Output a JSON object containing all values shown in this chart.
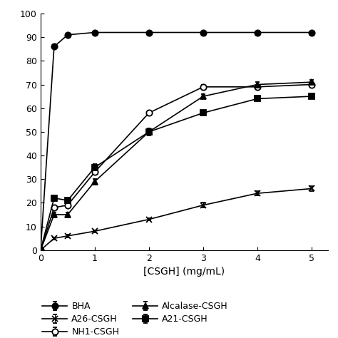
{
  "title": "",
  "xlabel": "[CSGH] (mg/mL)",
  "xlim": [
    0,
    5.3
  ],
  "ylim": [
    0,
    100
  ],
  "xticks": [
    0,
    1,
    2,
    3,
    4,
    5
  ],
  "yticks": [
    0,
    10,
    20,
    30,
    40,
    50,
    60,
    70,
    80,
    90,
    100
  ],
  "series": [
    {
      "label": "BHA",
      "x": [
        0,
        0.25,
        0.5,
        1,
        2,
        3,
        4,
        5
      ],
      "y": [
        0,
        86,
        91,
        92,
        92,
        92,
        92,
        92
      ],
      "yerr": [
        0,
        0.5,
        0.5,
        0.5,
        0.5,
        0.5,
        0.5,
        0.5
      ],
      "marker": "o",
      "markerfacecolor": "black",
      "markeredgecolor": "black",
      "linestyle": "-",
      "color": "black"
    },
    {
      "label": "NH1-CSGH",
      "x": [
        0,
        0.25,
        0.5,
        1,
        2,
        3,
        4,
        5
      ],
      "y": [
        0,
        18,
        19,
        33,
        58,
        69,
        69,
        70
      ],
      "yerr": [
        0,
        1,
        1,
        1,
        1,
        1,
        1,
        1
      ],
      "marker": "o",
      "markerfacecolor": "white",
      "markeredgecolor": "black",
      "linestyle": "-",
      "color": "black"
    },
    {
      "label": "A21-CSGH",
      "x": [
        0,
        0.25,
        0.5,
        1,
        2,
        3,
        4,
        5
      ],
      "y": [
        0,
        22,
        21,
        35,
        50,
        58,
        64,
        65
      ],
      "yerr": [
        0,
        1,
        1,
        1.5,
        1.5,
        1,
        1,
        1
      ],
      "marker": "s",
      "markerfacecolor": "black",
      "markeredgecolor": "black",
      "linestyle": "-",
      "color": "black"
    },
    {
      "label": "A26-CSGH",
      "x": [
        0,
        0.25,
        0.5,
        1,
        2,
        3,
        4,
        5
      ],
      "y": [
        0,
        5,
        6,
        8,
        13,
        19,
        24,
        26
      ],
      "yerr": [
        0,
        0.5,
        0.5,
        0.5,
        0.5,
        1,
        1,
        1
      ],
      "marker": "x",
      "markerfacecolor": "black",
      "markeredgecolor": "black",
      "linestyle": "-",
      "color": "black"
    },
    {
      "label": "Alcalase-CSGH",
      "x": [
        0,
        0.25,
        0.5,
        1,
        2,
        3,
        4,
        5
      ],
      "y": [
        0,
        15,
        15,
        29,
        50,
        65,
        70,
        71
      ],
      "yerr": [
        0,
        1,
        1,
        1,
        1,
        1,
        1,
        1
      ],
      "marker": "^",
      "markerfacecolor": "black",
      "markeredgecolor": "black",
      "linestyle": "-",
      "color": "black"
    }
  ],
  "legend_order": [
    0,
    3,
    1,
    4,
    2
  ],
  "background_color": "white",
  "figsize": [
    4.74,
    4.74
  ],
  "dpi": 100
}
